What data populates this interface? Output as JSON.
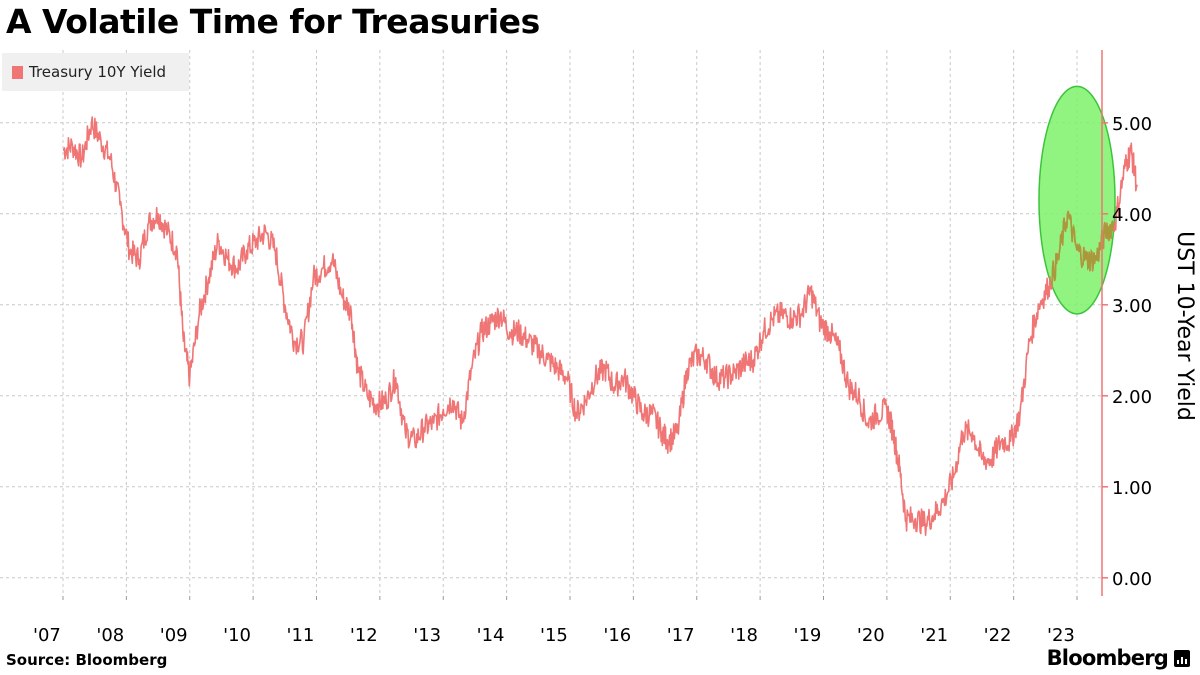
{
  "title": "A Volatile Time for Treasuries",
  "source": "Source: Bloomberg",
  "brand": "Bloomberg",
  "colors": {
    "series": "#f07575",
    "highlight_fill": "#7ff26a",
    "highlight_stroke": "#3cc43c",
    "grid": "#c8c8c8",
    "axis": "#f07575"
  },
  "chart_data": {
    "type": "line",
    "title": "A Volatile Time for Treasuries",
    "xlabel": "",
    "ylabel": "UST 10-Year Yield",
    "ylim": [
      -0.2,
      5.8
    ],
    "yticks": [
      0,
      1,
      2,
      3,
      4,
      5
    ],
    "ytick_labels": [
      "0.00",
      "1.00",
      "2.00",
      "3.00",
      "4.00",
      "5.00"
    ],
    "xlim": [
      2007.0,
      2024.0
    ],
    "xtick_labels": [
      "'07",
      "'08",
      "'09",
      "'10",
      "'11",
      "'12",
      "'13",
      "'14",
      "'15",
      "'16",
      "'17",
      "'18",
      "'19",
      "'20",
      "'21",
      "'22",
      "'23"
    ],
    "legend": {
      "position": "top-left"
    },
    "grid": true,
    "highlight": {
      "shape": "ellipse",
      "x_range": [
        2022.4,
        2023.6
      ],
      "y_range": [
        2.9,
        5.4
      ]
    },
    "series": [
      {
        "name": "Treasury 10Y Yield",
        "x": [
          2007.0,
          2007.15,
          2007.3,
          2007.45,
          2007.6,
          2007.75,
          2007.9,
          2008.05,
          2008.2,
          2008.35,
          2008.5,
          2008.65,
          2008.8,
          2008.9,
          2009.0,
          2009.15,
          2009.3,
          2009.45,
          2009.6,
          2009.75,
          2009.9,
          2010.05,
          2010.2,
          2010.35,
          2010.5,
          2010.65,
          2010.8,
          2010.95,
          2011.1,
          2011.25,
          2011.4,
          2011.55,
          2011.65,
          2011.8,
          2011.95,
          2012.1,
          2012.25,
          2012.4,
          2012.55,
          2012.7,
          2012.85,
          2013.0,
          2013.15,
          2013.3,
          2013.45,
          2013.6,
          2013.75,
          2013.9,
          2014.05,
          2014.2,
          2014.35,
          2014.5,
          2014.65,
          2014.8,
          2014.95,
          2015.1,
          2015.25,
          2015.4,
          2015.55,
          2015.7,
          2015.85,
          2016.0,
          2016.15,
          2016.3,
          2016.45,
          2016.55,
          2016.7,
          2016.85,
          2017.0,
          2017.15,
          2017.3,
          2017.45,
          2017.6,
          2017.75,
          2017.9,
          2018.05,
          2018.2,
          2018.35,
          2018.5,
          2018.65,
          2018.8,
          2018.95,
          2019.1,
          2019.25,
          2019.4,
          2019.55,
          2019.7,
          2019.85,
          2020.0,
          2020.1,
          2020.2,
          2020.3,
          2020.45,
          2020.6,
          2020.75,
          2020.9,
          2021.05,
          2021.2,
          2021.35,
          2021.5,
          2021.65,
          2021.8,
          2021.95,
          2022.1,
          2022.25,
          2022.4,
          2022.55,
          2022.7,
          2022.85,
          2023.0,
          2023.15,
          2023.3,
          2023.45,
          2023.6,
          2023.75,
          2023.85,
          2023.95
        ],
        "values": [
          4.7,
          4.75,
          4.6,
          5.0,
          4.8,
          4.6,
          4.1,
          3.6,
          3.5,
          3.9,
          4.0,
          3.8,
          3.6,
          2.6,
          2.2,
          2.9,
          3.3,
          3.7,
          3.5,
          3.4,
          3.6,
          3.7,
          3.8,
          3.6,
          3.0,
          2.6,
          2.6,
          3.3,
          3.4,
          3.5,
          3.1,
          2.9,
          2.3,
          2.0,
          1.9,
          1.95,
          2.2,
          1.6,
          1.5,
          1.65,
          1.7,
          1.85,
          1.95,
          1.7,
          2.3,
          2.7,
          2.8,
          2.9,
          2.7,
          2.7,
          2.6,
          2.5,
          2.4,
          2.3,
          2.2,
          1.8,
          1.95,
          2.2,
          2.3,
          2.1,
          2.2,
          2.0,
          1.8,
          1.8,
          1.6,
          1.5,
          1.6,
          2.3,
          2.45,
          2.4,
          2.2,
          2.2,
          2.25,
          2.35,
          2.4,
          2.7,
          2.85,
          2.9,
          2.85,
          2.9,
          3.15,
          2.8,
          2.7,
          2.5,
          2.1,
          2.0,
          1.7,
          1.8,
          1.85,
          1.6,
          1.2,
          0.65,
          0.65,
          0.6,
          0.7,
          0.85,
          1.1,
          1.6,
          1.6,
          1.3,
          1.3,
          1.5,
          1.5,
          1.8,
          2.6,
          3.0,
          3.2,
          3.5,
          4.0,
          3.6,
          3.5,
          3.5,
          3.8,
          3.9,
          4.5,
          4.7,
          4.3
        ]
      }
    ]
  }
}
